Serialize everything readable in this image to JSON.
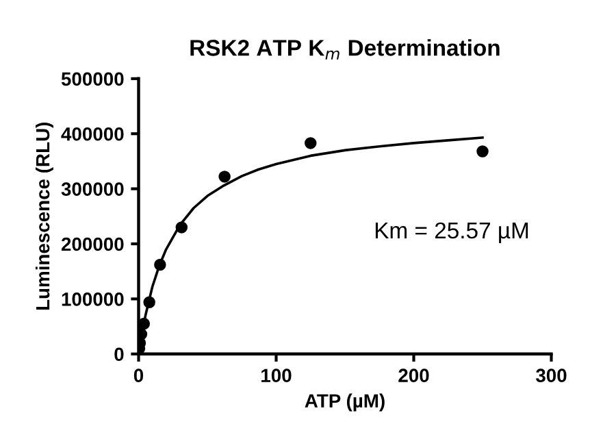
{
  "chart_data": {
    "type": "scatter",
    "title": "RSK2 ATP K$_{m}$ Determination",
    "xlabel": "ATP (µM)",
    "ylabel": "Luminescence (RLU)",
    "xlim": [
      0,
      300
    ],
    "xticks": [
      0,
      100,
      200,
      300
    ],
    "ylim": [
      0,
      500000
    ],
    "yticks": [
      0,
      100000,
      200000,
      300000,
      400000,
      500000
    ],
    "grid": false,
    "legend": false,
    "series": [
      {
        "color": "#000000",
        "marker": "circle",
        "x": [
          0.49,
          0.98,
          1.95,
          3.9,
          7.8,
          15.6,
          31.25,
          62.5,
          125,
          250
        ],
        "values": [
          10000,
          20000,
          36000,
          55000,
          94000,
          162000,
          230000,
          322000,
          383000,
          368000
        ]
      },
      {
        "type": "line",
        "color": "#000000",
        "marker": "none",
        "x": [
          0,
          2,
          5,
          10,
          15,
          20,
          30,
          40,
          50,
          62,
          75,
          87,
          100,
          125,
          150,
          175,
          200,
          225,
          250
        ],
        "values": [
          0,
          31000,
          70000,
          122000,
          160000,
          190000,
          234000,
          265000,
          287000,
          306000,
          323000,
          335000,
          345000,
          360000,
          370000,
          377000,
          383000,
          388000,
          393000
        ]
      }
    ],
    "annotations": [
      "Km = 25.57 µM"
    ]
  }
}
